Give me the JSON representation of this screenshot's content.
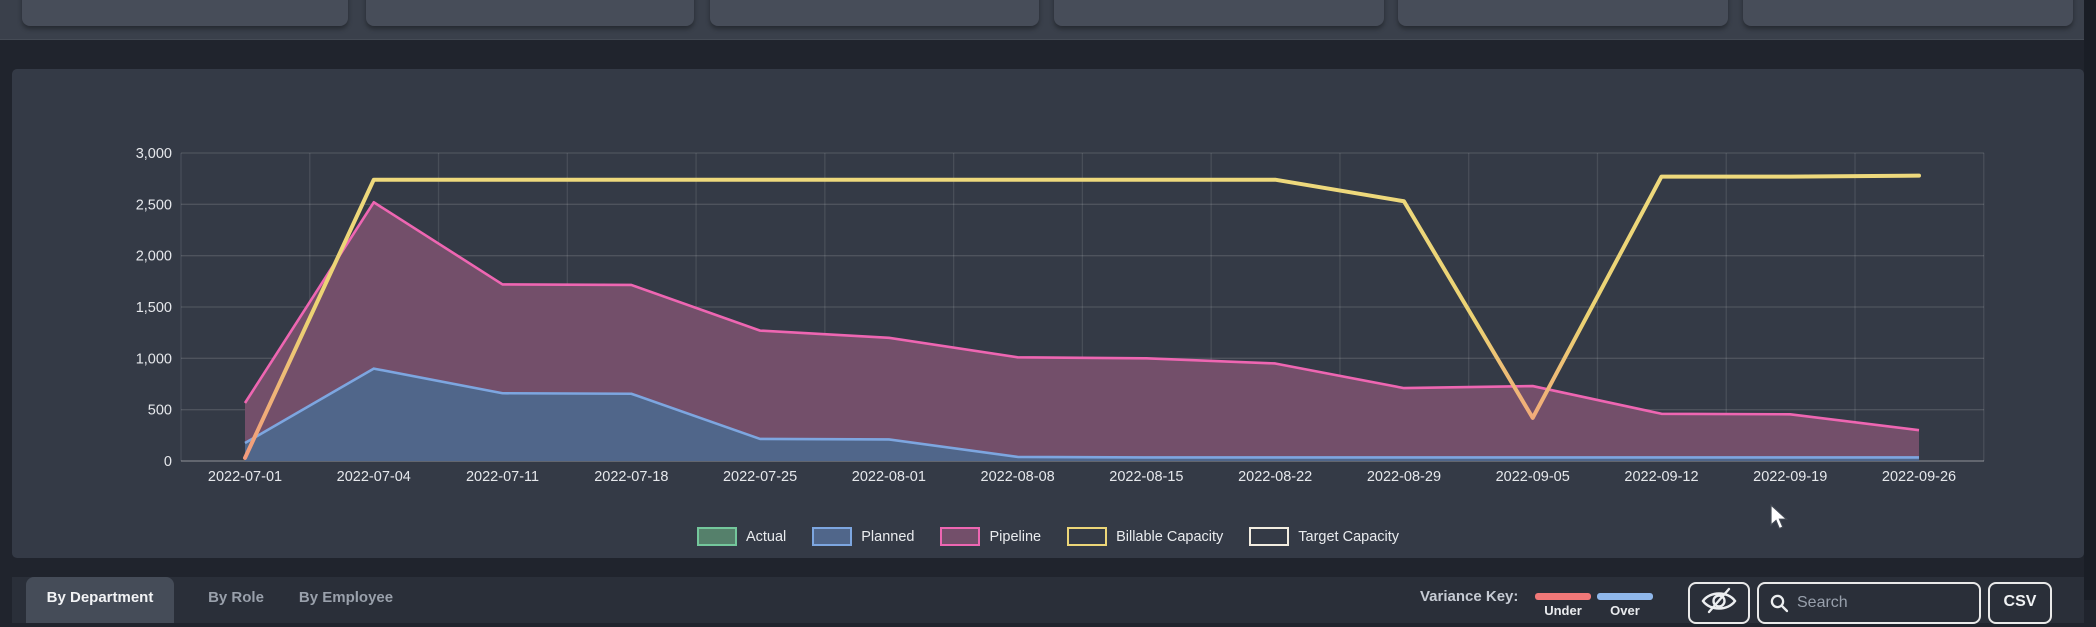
{
  "chart_data": {
    "type": "area",
    "categories": [
      "2022-07-01",
      "2022-07-04",
      "2022-07-11",
      "2022-07-18",
      "2022-07-25",
      "2022-08-01",
      "2022-08-08",
      "2022-08-15",
      "2022-08-22",
      "2022-08-29",
      "2022-09-05",
      "2022-09-12",
      "2022-09-19",
      "2022-09-26"
    ],
    "series": [
      {
        "name": "Actual",
        "kind": "area",
        "line_color": "#74c79c",
        "fill_color": "#55806b",
        "values": [
          0,
          0,
          0,
          0,
          0,
          0,
          0,
          0,
          0,
          0,
          0,
          0,
          0,
          0
        ]
      },
      {
        "name": "Planned",
        "kind": "area",
        "line_color": "#7da6e0",
        "fill_color": "#50668a",
        "values": [
          175,
          900,
          660,
          655,
          215,
          210,
          40,
          35,
          35,
          35,
          35,
          35,
          35,
          35
        ]
      },
      {
        "name": "Pipeline",
        "kind": "area",
        "line_color": "#ee66b2",
        "fill_color": "#734f6a",
        "values": [
          565,
          2520,
          1720,
          1715,
          1270,
          1200,
          1010,
          1000,
          950,
          710,
          730,
          460,
          455,
          300
        ]
      },
      {
        "name": "Billable Capacity",
        "kind": "line",
        "line_color": "#ecd678",
        "line_color_low": "#f2997c",
        "values": [
          30,
          2740,
          2740,
          2740,
          2740,
          2740,
          2740,
          2740,
          2740,
          2530,
          420,
          2770,
          2770,
          2780
        ]
      },
      {
        "name": "Target Capacity",
        "kind": "line",
        "line_color": "#f2ece0",
        "values": []
      }
    ],
    "ylim": [
      0,
      3000
    ],
    "ytick_labels": [
      "0",
      "500",
      "1,000",
      "1,500",
      "2,000",
      "2,500",
      "3,000"
    ],
    "ytick_values": [
      0,
      500,
      1000,
      1500,
      2000,
      2500,
      3000
    ],
    "grid": true,
    "legend_position": "bottom"
  },
  "tabs": [
    {
      "label": "By Department",
      "active": true
    },
    {
      "label": "By Role",
      "active": false
    },
    {
      "label": "By Employee",
      "active": false
    }
  ],
  "variance_key": {
    "label": "Variance Key:",
    "under": {
      "label": "Under",
      "color": "#f07878"
    },
    "over": {
      "label": "Over",
      "color": "#8fb7ea"
    }
  },
  "toolbar": {
    "search_placeholder": "Search",
    "csv_label": "CSV"
  },
  "colors": {
    "page_bg": "#20242d",
    "panel_bg": "#343a46",
    "strip_bg": "#3a404b",
    "card_bg": "#474d59",
    "bottom_bar_bg": "#2a2f39",
    "active_tab_bg": "#454c58",
    "axis_text": "#e6e8ec",
    "muted_text": "#99a0ab"
  }
}
